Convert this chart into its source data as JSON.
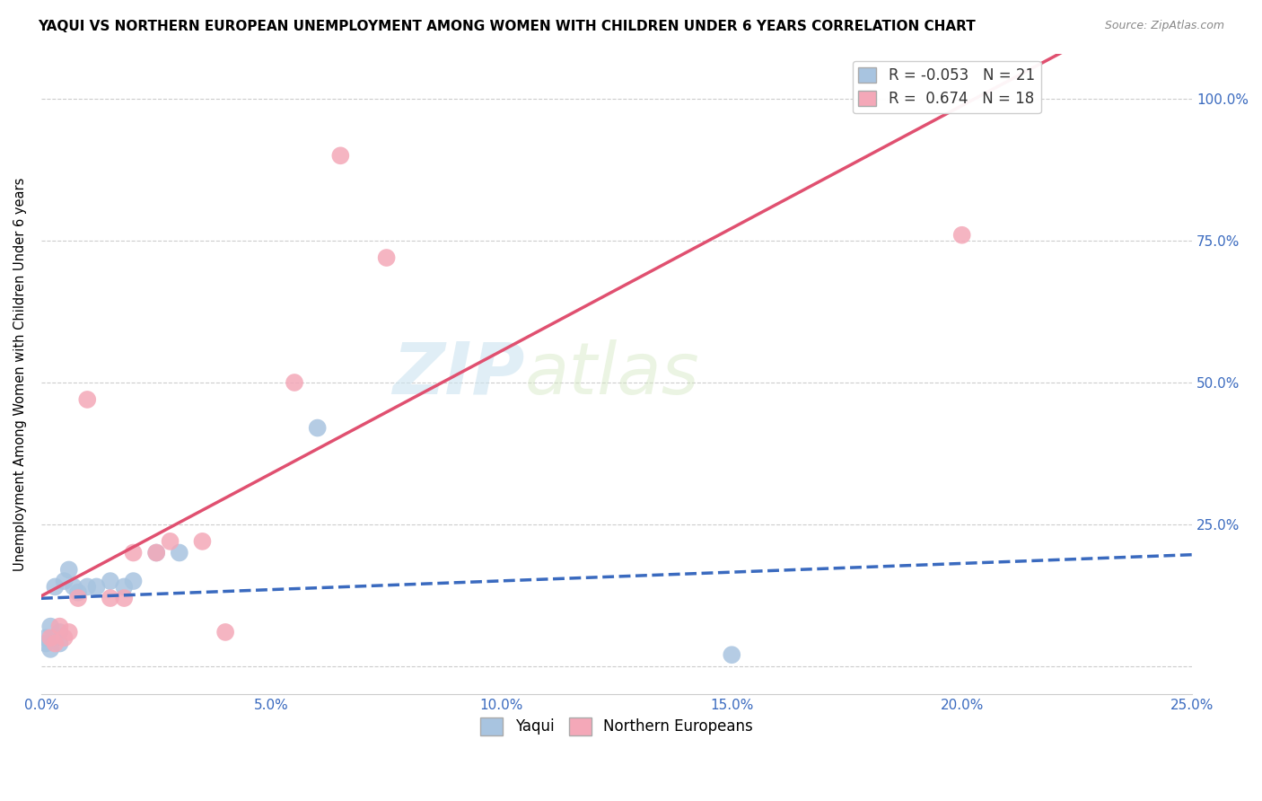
{
  "title": "YAQUI VS NORTHERN EUROPEAN UNEMPLOYMENT AMONG WOMEN WITH CHILDREN UNDER 6 YEARS CORRELATION CHART",
  "source": "Source: ZipAtlas.com",
  "ylabel": "Unemployment Among Women with Children Under 6 years",
  "yaxis_labels": [
    "",
    "25.0%",
    "50.0%",
    "75.0%",
    "100.0%"
  ],
  "yaqui_color": "#a8c4e0",
  "yaqui_line_color": "#3a6abf",
  "ne_color": "#f4a8b8",
  "ne_line_color": "#e05070",
  "watermark_zip": "ZIP",
  "watermark_atlas": "atlas",
  "xmin": 0.0,
  "xmax": 0.25,
  "ymin": -0.05,
  "ymax": 1.08,
  "yaqui_scatter": [
    [
      0.001,
      0.05
    ],
    [
      0.001,
      0.04
    ],
    [
      0.002,
      0.03
    ],
    [
      0.002,
      0.07
    ],
    [
      0.003,
      0.05
    ],
    [
      0.003,
      0.14
    ],
    [
      0.004,
      0.04
    ],
    [
      0.004,
      0.06
    ],
    [
      0.005,
      0.15
    ],
    [
      0.006,
      0.17
    ],
    [
      0.007,
      0.14
    ],
    [
      0.008,
      0.13
    ],
    [
      0.01,
      0.14
    ],
    [
      0.012,
      0.14
    ],
    [
      0.015,
      0.15
    ],
    [
      0.018,
      0.14
    ],
    [
      0.02,
      0.15
    ],
    [
      0.025,
      0.2
    ],
    [
      0.03,
      0.2
    ],
    [
      0.06,
      0.42
    ],
    [
      0.15,
      0.02
    ]
  ],
  "ne_scatter": [
    [
      0.002,
      0.05
    ],
    [
      0.003,
      0.04
    ],
    [
      0.004,
      0.07
    ],
    [
      0.005,
      0.05
    ],
    [
      0.006,
      0.06
    ],
    [
      0.008,
      0.12
    ],
    [
      0.01,
      0.47
    ],
    [
      0.015,
      0.12
    ],
    [
      0.018,
      0.12
    ],
    [
      0.02,
      0.2
    ],
    [
      0.025,
      0.2
    ],
    [
      0.028,
      0.22
    ],
    [
      0.035,
      0.22
    ],
    [
      0.04,
      0.06
    ],
    [
      0.055,
      0.5
    ],
    [
      0.065,
      0.9
    ],
    [
      0.075,
      0.72
    ],
    [
      0.2,
      0.76
    ]
  ],
  "yaqui_R": -0.053,
  "yaqui_N": 21,
  "ne_R": 0.674,
  "ne_N": 18
}
